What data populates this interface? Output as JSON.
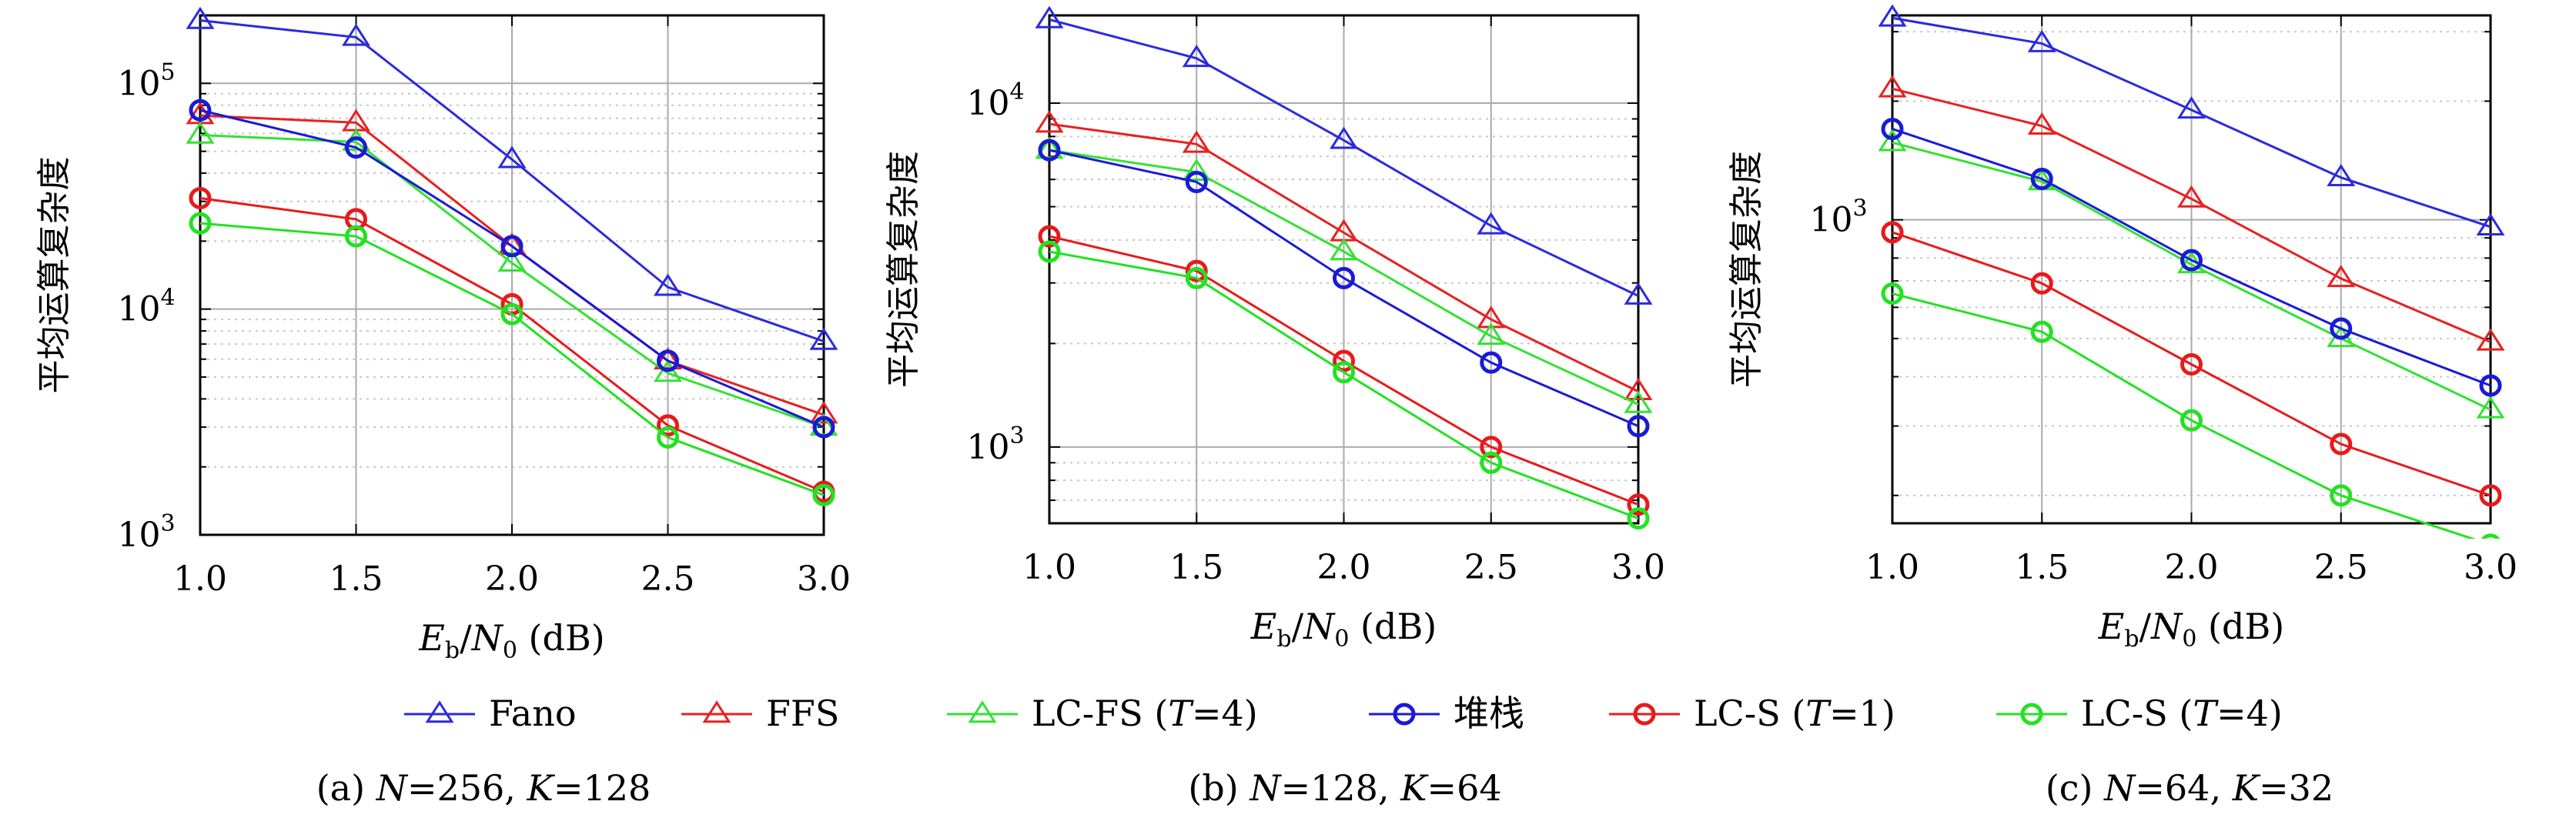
{
  "figure": {
    "legend": {
      "entries": [
        {
          "key": "fano",
          "label": "Fano",
          "color": "#2a2ae0",
          "marker": "triangle"
        },
        {
          "key": "ffs",
          "label": "FFS",
          "color": "#e82020",
          "marker": "triangle"
        },
        {
          "key": "lcfs4",
          "label": "LC-FS (T=4)",
          "color": "#33e233",
          "marker": "triangle"
        },
        {
          "key": "stack",
          "label": "堆栈",
          "color": "#1a1ad8",
          "marker": "circle"
        },
        {
          "key": "lcs1",
          "label": "LC-S (T=1)",
          "color": "#e81a1a",
          "marker": "circle"
        },
        {
          "key": "lcs4",
          "label": "LC-S (T=4)",
          "color": "#22e222",
          "marker": "circle"
        }
      ]
    }
  },
  "chart_data": [
    {
      "type": "line",
      "caption": "(a) N=256, K=128",
      "xlabel": "Eb/N0 (dB)",
      "ylabel": "平均运算复杂度",
      "yscale": "log",
      "grid": true,
      "x": [
        1.0,
        1.5,
        2.0,
        2.5,
        3.0
      ],
      "xticks": [
        "1.0",
        "1.5",
        "2.0",
        "2.5",
        "3.0"
      ],
      "xlim": [
        1.0,
        3.0
      ],
      "ylim": [
        1000,
        200000
      ],
      "yticks": [
        {
          "value": 1000,
          "base": "10",
          "exp": "3"
        },
        {
          "value": 10000,
          "base": "10",
          "exp": "4"
        },
        {
          "value": 100000,
          "base": "10",
          "exp": "5"
        }
      ],
      "series": [
        {
          "name": "Fano",
          "values": [
            190000,
            160000,
            46000,
            12500,
            7200
          ]
        },
        {
          "name": "FFS",
          "values": [
            72000,
            67000,
            19000,
            5900,
            3400
          ]
        },
        {
          "name": "LC-FS (T=4)",
          "values": [
            59000,
            55000,
            16000,
            5200,
            3000
          ]
        },
        {
          "name": "堆栈",
          "values": [
            76000,
            52000,
            19000,
            5900,
            3000
          ]
        },
        {
          "name": "LC-S (T=1)",
          "values": [
            31000,
            25000,
            10500,
            3050,
            1550
          ]
        },
        {
          "name": "LC-S (T=4)",
          "values": [
            24000,
            21000,
            9500,
            2700,
            1500
          ]
        }
      ]
    },
    {
      "type": "line",
      "caption": "(b) N=128, K=64",
      "xlabel": "Eb/N0 (dB)",
      "ylabel": "平均运算复杂度",
      "yscale": "log",
      "grid": true,
      "x": [
        1.0,
        1.5,
        2.0,
        2.5,
        3.0
      ],
      "xticks": [
        "1.0",
        "1.5",
        "2.0",
        "2.5",
        "3.0"
      ],
      "xlim": [
        1.0,
        3.0
      ],
      "ylim": [
        600,
        18000
      ],
      "yticks": [
        {
          "value": 1000,
          "base": "10",
          "exp": "3"
        },
        {
          "value": 10000,
          "base": "10",
          "exp": "4"
        }
      ],
      "series": [
        {
          "name": "Fano",
          "values": [
            17500,
            13500,
            7800,
            4400,
            2750
          ]
        },
        {
          "name": "FFS",
          "values": [
            8700,
            7600,
            4200,
            2350,
            1450
          ]
        },
        {
          "name": "LC-FS (T=4)",
          "values": [
            7300,
            6300,
            3700,
            2100,
            1330
          ]
        },
        {
          "name": "堆栈",
          "values": [
            7300,
            5900,
            3100,
            1760,
            1150
          ]
        },
        {
          "name": "LC-S (T=1)",
          "values": [
            4100,
            3250,
            1780,
            1000,
            680
          ]
        },
        {
          "name": "LC-S (T=4)",
          "values": [
            3700,
            3100,
            1650,
            900,
            620
          ]
        }
      ]
    },
    {
      "type": "line",
      "caption": "(c) N=64, K=32",
      "xlabel": "Eb/N0 (dB)",
      "ylabel": "平均运算复杂度",
      "yscale": "log",
      "grid": true,
      "x": [
        1.0,
        1.5,
        2.0,
        2.5,
        3.0
      ],
      "xticks": [
        "1.0",
        "1.5",
        "2.0",
        "2.5",
        "3.0"
      ],
      "xlim": [
        1.0,
        3.0
      ],
      "ylim": [
        170,
        3300
      ],
      "yticks": [
        {
          "value": 1000,
          "base": "10",
          "exp": "3"
        }
      ],
      "series": [
        {
          "name": "Fano",
          "values": [
            3250,
            2800,
            1900,
            1280,
            960
          ]
        },
        {
          "name": "FFS",
          "values": [
            2150,
            1730,
            1130,
            710,
            490
          ]
        },
        {
          "name": "LC-FS (T=4)",
          "values": [
            1570,
            1250,
            770,
            500,
            330
          ]
        },
        {
          "name": "堆栈",
          "values": [
            1700,
            1270,
            790,
            530,
            380
          ]
        },
        {
          "name": "LC-S (T=1)",
          "values": [
            930,
            690,
            430,
            270,
            200
          ]
        },
        {
          "name": "LC-S (T=4)",
          "values": [
            650,
            520,
            310,
            200,
            150
          ]
        }
      ]
    }
  ]
}
